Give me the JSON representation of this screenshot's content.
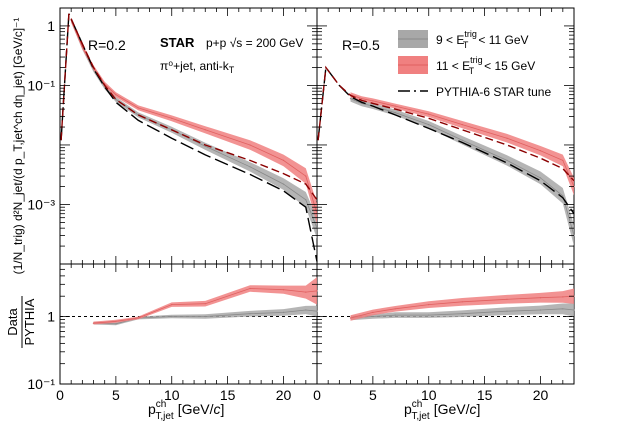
{
  "chart_data": [
    {
      "type": "line",
      "name": "left-top",
      "panel_label": "R=0.2",
      "yscale": "log",
      "xlim": [
        0,
        23
      ],
      "ylim": [
        0.0001,
        2
      ],
      "ylabel": "(1/N_trig) d²N_jet/(d p_T,jet^ch dη_jet) [GeV/c]⁻¹",
      "yticks": [
        {
          "v": 1,
          "label": "1"
        },
        {
          "v": 0.1,
          "label": "10⁻¹"
        },
        {
          "v": 0.001,
          "label": "10⁻³"
        }
      ],
      "series": [
        {
          "name": "9 < E_T^trig < 11 GeV",
          "style": "band-gray",
          "x": [
            1,
            2,
            3,
            4,
            5,
            7,
            10,
            13,
            17,
            20,
            22,
            23
          ],
          "y": [
            1.25,
            0.44,
            0.185,
            0.095,
            0.058,
            0.032,
            0.018,
            0.0095,
            0.0043,
            0.0022,
            0.0012,
            0.0004
          ],
          "err": [
            0.1,
            0.1,
            0.1,
            0.1,
            0.1,
            0.1,
            0.12,
            0.15,
            0.2,
            0.25,
            0.35,
            0.5
          ]
        },
        {
          "name": "11 < E_T^trig < 15 GeV",
          "style": "band-red",
          "x": [
            1,
            2,
            3,
            4,
            5,
            7,
            10,
            13,
            17,
            20,
            22,
            23
          ],
          "y": [
            1.25,
            0.45,
            0.2,
            0.105,
            0.07,
            0.042,
            0.028,
            0.018,
            0.01,
            0.0055,
            0.003,
            0.0007
          ],
          "err": [
            0.1,
            0.1,
            0.1,
            0.1,
            0.1,
            0.1,
            0.12,
            0.15,
            0.2,
            0.25,
            0.35,
            0.5
          ]
        },
        {
          "name": "PYTHIA-6 STAR tune (9-11)",
          "style": "dash-black",
          "x": [
            0.1,
            0.8,
            2,
            3,
            4,
            5,
            7,
            10,
            13,
            17,
            20,
            22,
            23
          ],
          "y": [
            0.012,
            1.6,
            0.5,
            0.19,
            0.095,
            0.052,
            0.026,
            0.013,
            0.0068,
            0.0032,
            0.0017,
            0.0009,
            0.00011
          ]
        },
        {
          "name": "PYTHIA-6 STAR tune (11-15)",
          "style": "dash-red",
          "x": [
            0.1,
            0.8,
            2,
            3,
            4,
            5,
            7,
            10,
            13,
            17,
            20,
            22,
            23
          ],
          "y": [
            0.012,
            1.6,
            0.5,
            0.2,
            0.1,
            0.058,
            0.032,
            0.018,
            0.01,
            0.0055,
            0.0033,
            0.0022,
            0.0012
          ]
        }
      ]
    },
    {
      "type": "line",
      "name": "right-top",
      "panel_label": "R=0.5",
      "yscale": "log",
      "xlim": [
        0,
        23
      ],
      "ylim": [
        0.0001,
        2
      ],
      "series": [
        {
          "name": "9 < E_T^trig < 11 GeV",
          "style": "band-gray",
          "x": [
            3,
            4,
            5,
            7,
            10,
            13,
            17,
            20,
            22,
            23
          ],
          "y": [
            0.06,
            0.05,
            0.045,
            0.035,
            0.022,
            0.012,
            0.0055,
            0.0028,
            0.0014,
            0.0003
          ],
          "err": [
            0.12,
            0.12,
            0.12,
            0.12,
            0.15,
            0.18,
            0.22,
            0.28,
            0.35,
            0.5
          ]
        },
        {
          "name": "11 < E_T^trig < 15 GeV",
          "style": "band-red",
          "x": [
            3,
            4,
            5,
            7,
            10,
            13,
            17,
            20,
            22,
            23
          ],
          "y": [
            0.07,
            0.06,
            0.055,
            0.045,
            0.033,
            0.022,
            0.013,
            0.008,
            0.0055,
            0.002
          ],
          "err": [
            0.1,
            0.1,
            0.1,
            0.1,
            0.12,
            0.15,
            0.18,
            0.2,
            0.25,
            0.4
          ]
        },
        {
          "name": "PYTHIA-6 STAR tune (9-11)",
          "style": "dash-black",
          "x": [
            0.1,
            0.8,
            2,
            3,
            4,
            5,
            7,
            10,
            13,
            17,
            20,
            22,
            23
          ],
          "y": [
            0.012,
            0.2,
            0.1,
            0.065,
            0.052,
            0.045,
            0.032,
            0.019,
            0.011,
            0.005,
            0.0025,
            0.0013,
            0.0007
          ]
        },
        {
          "name": "PYTHIA-6 STAR tune (11-15)",
          "style": "dash-red",
          "x": [
            0.1,
            0.8,
            2,
            3,
            4,
            5,
            7,
            10,
            13,
            17,
            20,
            22,
            23
          ],
          "y": [
            0.012,
            0.2,
            0.1,
            0.068,
            0.056,
            0.05,
            0.04,
            0.028,
            0.018,
            0.01,
            0.006,
            0.004,
            0.0025
          ]
        }
      ]
    },
    {
      "type": "line",
      "name": "left-ratio",
      "yscale": "log",
      "xlim": [
        0,
        23
      ],
      "ylim": [
        0.1,
        6
      ],
      "ylabel": "Data/PYTHIA",
      "xlabel": "p_T,jet^ch [GeV/c]",
      "yticks": [
        {
          "v": 1,
          "label": "1"
        },
        {
          "v": 0.1,
          "label": "10⁻¹"
        }
      ],
      "reference_line": 1,
      "series": [
        {
          "name": "9 < E_T^trig < 11 GeV",
          "style": "band-gray",
          "x": [
            3,
            5,
            7,
            10,
            13,
            17,
            20,
            22,
            23
          ],
          "y": [
            0.8,
            0.78,
            0.95,
            1.0,
            1.0,
            1.1,
            1.15,
            1.25,
            1.2
          ],
          "err": [
            0.05,
            0.05,
            0.05,
            0.06,
            0.08,
            0.1,
            0.12,
            0.15,
            0.2
          ]
        },
        {
          "name": "11 < E_T^trig < 15 GeV",
          "style": "band-red",
          "x": [
            3,
            5,
            7,
            10,
            13,
            17,
            20,
            22,
            23
          ],
          "y": [
            0.8,
            0.85,
            0.95,
            1.5,
            1.55,
            2.6,
            2.5,
            2.3,
            2.4
          ],
          "err": [
            0.05,
            0.05,
            0.05,
            0.08,
            0.1,
            0.12,
            0.15,
            0.25,
            0.6
          ]
        }
      ]
    },
    {
      "type": "line",
      "name": "right-ratio",
      "yscale": "log",
      "xlim": [
        0,
        23
      ],
      "ylim": [
        0.1,
        6
      ],
      "xlabel": "p_T,jet^ch [GeV/c]",
      "reference_line": 1,
      "series": [
        {
          "name": "9 < E_T^trig < 11 GeV",
          "style": "band-gray",
          "x": [
            3,
            5,
            7,
            10,
            13,
            17,
            20,
            22,
            23
          ],
          "y": [
            0.95,
            1.0,
            1.05,
            1.05,
            1.1,
            1.2,
            1.25,
            1.3,
            1.25
          ],
          "err": [
            0.08,
            0.08,
            0.1,
            0.1,
            0.12,
            0.14,
            0.16,
            0.2,
            0.25
          ]
        },
        {
          "name": "11 < E_T^trig < 15 GeV",
          "style": "band-red",
          "x": [
            3,
            5,
            7,
            10,
            13,
            17,
            20,
            22,
            23
          ],
          "y": [
            0.95,
            1.15,
            1.3,
            1.5,
            1.65,
            1.8,
            1.9,
            1.95,
            2.0
          ],
          "err": [
            0.1,
            0.1,
            0.1,
            0.12,
            0.14,
            0.16,
            0.18,
            0.22,
            0.3
          ]
        }
      ]
    }
  ],
  "labels": {
    "r02": "R=0.2",
    "r05": "R=0.5",
    "star": "STAR",
    "collision": "p+p √s = 200 GeV",
    "trigger": "π⁰+jet, anti-k",
    "trigger_sub": "T",
    "ytitle": "(1/N_trig) d²N_jet/(d p_T,jet^ch dη_jet) [GeV/c]⁻¹",
    "ratio_num": "Data",
    "ratio_den": "PYTHIA",
    "xtitle_p": "p",
    "xtitle_sup": "ch",
    "xtitle_sub": "T,jet",
    "xtitle_unit": "[GeV/",
    "xtitle_c": "c",
    "xtitle_close": "]"
  },
  "legend": {
    "gray_pre": "9 < E",
    "gray_sup": "trig",
    "gray_sub": "T",
    "gray_post": "< 11 GeV",
    "red_pre": "11 < E",
    "red_sup": "trig",
    "red_sub": "T",
    "red_post": "< 15 GeV",
    "pythia": "PYTHIA-6 STAR tune"
  },
  "xticklabels": [
    "5",
    "10",
    "15",
    "20"
  ],
  "colors": {
    "gray_band": "#a8a8a8",
    "red_band": "#f08080",
    "red_dash": "#8b0000",
    "black": "#000000"
  }
}
